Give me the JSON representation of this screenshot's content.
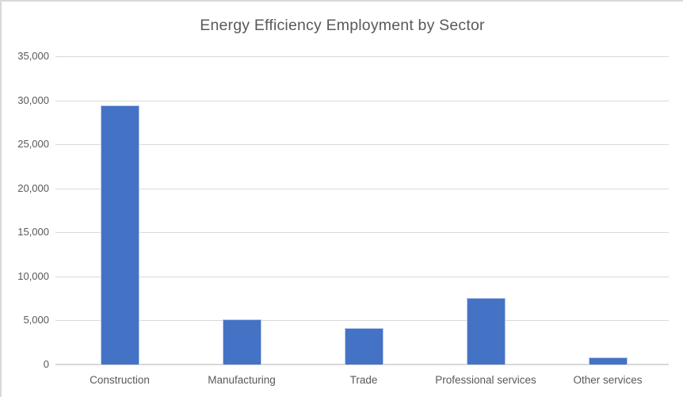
{
  "window": {
    "background_color": "#ffffff",
    "frame_border_color": "#d9d9d9"
  },
  "chart_data": {
    "type": "bar",
    "title": "Energy Efficiency Employment by Sector",
    "categories": [
      "Construction",
      "Manufacturing",
      "Trade",
      "Professional services",
      "Other services"
    ],
    "values": [
      29400,
      5100,
      4100,
      7600,
      800
    ],
    "xlabel": "",
    "ylabel": "",
    "ylim": [
      0,
      35000
    ],
    "ytick_step": 5000,
    "ytick_labels": [
      "0",
      "5,000",
      "10,000",
      "15,000",
      "20,000",
      "25,000",
      "30,000",
      "35,000"
    ],
    "grid": true,
    "legend": "none",
    "bar_color": "#4472c4",
    "bar_edge_color": "#b6c9ec",
    "gridline_color": "#d9d9d9",
    "text_color": "#595959"
  }
}
